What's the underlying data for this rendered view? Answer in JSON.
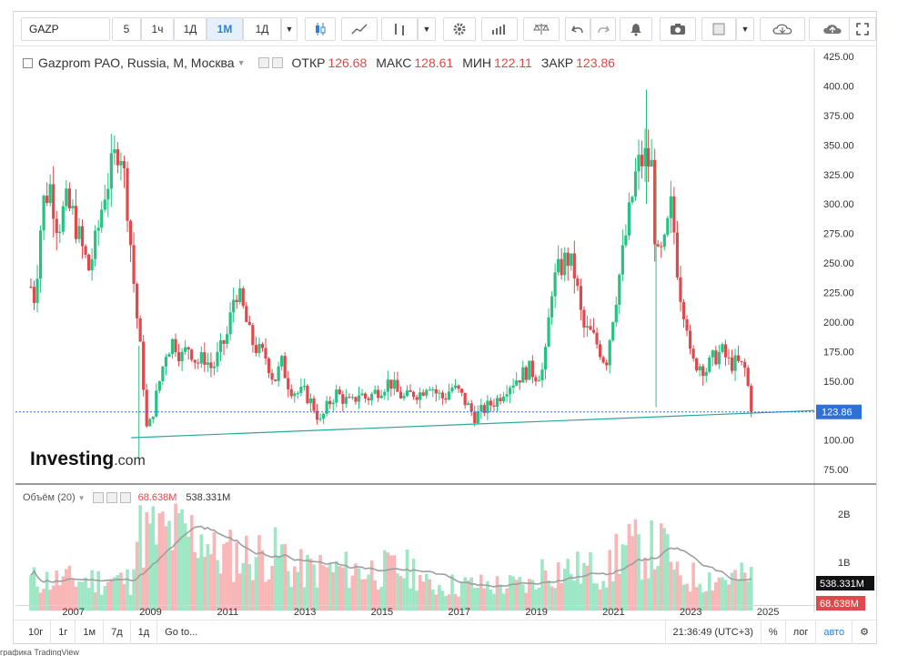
{
  "toolbar": {
    "symbol": "GAZP",
    "intervals": [
      "5",
      "1ч",
      "1Д",
      "1М",
      "1Д"
    ],
    "active_interval": "1М",
    "icons": [
      "candles-icon",
      "line-chart-icon",
      "bars-icon",
      "gear-icon",
      "indicators-icon",
      "scales-icon",
      "undo-icon",
      "redo-icon",
      "alert-icon",
      "camera-icon",
      "color-box-icon",
      "cloud-download-icon",
      "cloud-upload-icon",
      "fullscreen-icon"
    ]
  },
  "legend": {
    "title": "Gazprom PAO, Russia, M, Москва",
    "open_label": "ОТКР",
    "open": "126.68",
    "high_label": "МАКС",
    "high": "128.61",
    "low_label": "МИН",
    "low": "122.11",
    "close_label": "ЗАКР",
    "close": "123.86"
  },
  "volume_legend": {
    "title": "Объём (20)",
    "volume": "68.638M",
    "ma": "538.331M"
  },
  "logo": {
    "name": "Investing",
    "suffix": ".com"
  },
  "bottom_bar": {
    "ranges": [
      "10г",
      "1г",
      "1м",
      "7д",
      "1д"
    ],
    "goto": "Go to...",
    "time": "21:36:49 (UTC+3)",
    "percent": "%",
    "log": "лог",
    "auto": "авто"
  },
  "credit": "графика TradingView",
  "colors": {
    "up": "#26c281",
    "down": "#e0484b",
    "up_vol": "#9ee7c4",
    "down_vol": "#f8b6b6",
    "trend": "#2aa79b",
    "price_label": "#2f6fd6",
    "vol_ma": "#9e9e9e"
  },
  "chart_data": {
    "type": "candlestick",
    "price_axis": {
      "ticks": [
        75,
        100,
        125,
        150,
        175,
        200,
        225,
        250,
        275,
        300,
        325,
        350,
        375,
        400,
        425
      ],
      "range": [
        62,
        432
      ]
    },
    "time_axis": {
      "ticks": [
        "2007",
        "2009",
        "2011",
        "2013",
        "2015",
        "2017",
        "2019",
        "2021",
        "2023",
        "2025"
      ],
      "range": [
        2005.5,
        2026.2
      ]
    },
    "last_price": 123.86,
    "trendline": {
      "from": [
        2008.5,
        102
      ],
      "to": [
        2026.2,
        125
      ]
    },
    "path": [
      [
        2005.9,
        230
      ],
      [
        2006.0,
        220
      ],
      [
        2006.2,
        300
      ],
      [
        2006.4,
        315
      ],
      [
        2006.6,
        280
      ],
      [
        2006.8,
        300
      ],
      [
        2007.0,
        290
      ],
      [
        2007.2,
        265
      ],
      [
        2007.4,
        245
      ],
      [
        2007.6,
        270
      ],
      [
        2007.8,
        310
      ],
      [
        2008.0,
        330
      ],
      [
        2008.2,
        355
      ],
      [
        2008.4,
        300
      ],
      [
        2008.6,
        220
      ],
      [
        2008.8,
        155
      ],
      [
        2008.9,
        110
      ],
      [
        2009.0,
        115
      ],
      [
        2009.2,
        145
      ],
      [
        2009.4,
        175
      ],
      [
        2009.6,
        185
      ],
      [
        2009.8,
        170
      ],
      [
        2010.0,
        180
      ],
      [
        2010.2,
        165
      ],
      [
        2010.4,
        170
      ],
      [
        2010.6,
        160
      ],
      [
        2010.8,
        175
      ],
      [
        2011.0,
        190
      ],
      [
        2011.2,
        230
      ],
      [
        2011.4,
        210
      ],
      [
        2011.6,
        185
      ],
      [
        2011.8,
        175
      ],
      [
        2012.0,
        170
      ],
      [
        2012.2,
        150
      ],
      [
        2012.4,
        165
      ],
      [
        2012.6,
        145
      ],
      [
        2012.8,
        140
      ],
      [
        2013.0,
        140
      ],
      [
        2013.2,
        130
      ],
      [
        2013.4,
        115
      ],
      [
        2013.6,
        130
      ],
      [
        2013.8,
        140
      ],
      [
        2014.0,
        135
      ],
      [
        2014.2,
        130
      ],
      [
        2014.4,
        140
      ],
      [
        2014.6,
        135
      ],
      [
        2014.8,
        140
      ],
      [
        2015.0,
        145
      ],
      [
        2015.2,
        150
      ],
      [
        2015.4,
        140
      ],
      [
        2015.6,
        135
      ],
      [
        2015.8,
        140
      ],
      [
        2016.0,
        140
      ],
      [
        2016.2,
        150
      ],
      [
        2016.4,
        140
      ],
      [
        2016.6,
        135
      ],
      [
        2016.8,
        145
      ],
      [
        2017.0,
        140
      ],
      [
        2017.2,
        130
      ],
      [
        2017.4,
        120
      ],
      [
        2017.6,
        125
      ],
      [
        2017.8,
        130
      ],
      [
        2018.0,
        135
      ],
      [
        2018.2,
        145
      ],
      [
        2018.4,
        150
      ],
      [
        2018.6,
        155
      ],
      [
        2018.8,
        160
      ],
      [
        2019.0,
        155
      ],
      [
        2019.2,
        160
      ],
      [
        2019.4,
        230
      ],
      [
        2019.6,
        245
      ],
      [
        2019.8,
        255
      ],
      [
        2020.0,
        240
      ],
      [
        2020.2,
        195
      ],
      [
        2020.4,
        190
      ],
      [
        2020.6,
        180
      ],
      [
        2020.8,
        165
      ],
      [
        2021.0,
        210
      ],
      [
        2021.2,
        250
      ],
      [
        2021.4,
        290
      ],
      [
        2021.6,
        330
      ],
      [
        2021.8,
        340
      ],
      [
        2022.0,
        330
      ],
      [
        2022.1,
        250
      ],
      [
        2022.3,
        260
      ],
      [
        2022.5,
        300
      ],
      [
        2022.7,
        230
      ],
      [
        2022.9,
        200
      ],
      [
        2023.0,
        165
      ],
      [
        2023.2,
        165
      ],
      [
        2023.4,
        160
      ],
      [
        2023.6,
        170
      ],
      [
        2023.8,
        175
      ],
      [
        2024.0,
        165
      ],
      [
        2024.2,
        165
      ],
      [
        2024.4,
        160
      ],
      [
        2024.6,
        124
      ]
    ],
    "volume_axis": {
      "ticks": [
        "1B",
        "2B"
      ],
      "tick_values": [
        1,
        2
      ],
      "range": [
        0,
        2.6
      ],
      "units": "B"
    },
    "volume_ma_last": "538.331M",
    "volume_last": "68.638M"
  }
}
